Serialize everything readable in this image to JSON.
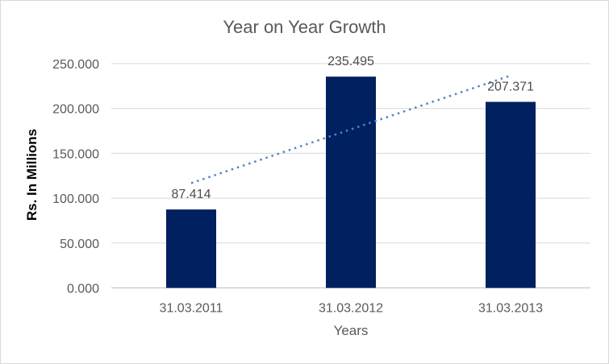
{
  "chart_data": {
    "type": "bar",
    "title": "Year on Year Growth",
    "xlabel": "Years",
    "ylabel": "Rs. In Millions",
    "categories": [
      "31.03.2011",
      "31.03.2012",
      "31.03.2013"
    ],
    "values": [
      87.414,
      235.495,
      207.371
    ],
    "data_labels": [
      "87.414",
      "235.495",
      "207.371"
    ],
    "y_ticks": [
      0,
      50,
      100,
      150,
      200,
      250
    ],
    "y_tick_labels": [
      "0.000",
      "50.000",
      "100.000",
      "150.000",
      "200.000",
      "250.000"
    ],
    "ylim": [
      0,
      250
    ],
    "grid": true,
    "legend": "none",
    "trendline": {
      "type": "linear",
      "style": "dotted",
      "start_value": 116.8,
      "end_value": 236.7,
      "color": "#4e86c8"
    },
    "colors": {
      "bar": "#002060",
      "gridline": "#d9d9d9",
      "axis_line": "#bfbfbf",
      "title_text": "#595959",
      "tick_text": "#595959",
      "category_text": "#595959",
      "data_label_text": "#4d4d4d",
      "x_axis_title_text": "#595959",
      "y_axis_title_text": "#000000",
      "chart_border": "#d9d9d9",
      "background": "#ffffff"
    }
  }
}
